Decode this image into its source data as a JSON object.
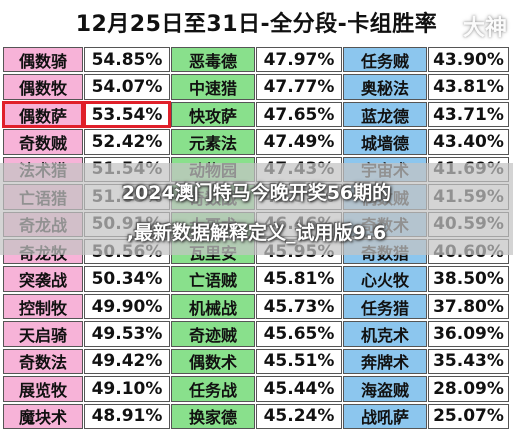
{
  "title": "12月25日至31日-全分段-卡组胜率",
  "logo": "大神",
  "overlay_text": {
    "line1": "2024澳门特马今晚开奖56期的",
    "line2": ",最新数据解释定义_试用版9.6"
  },
  "colors": {
    "pink": "#f7b3d8",
    "green": "#89e08c",
    "blue": "#8cc6ee",
    "red_outline": "#e0202a"
  },
  "rows": [
    [
      "偶数骑",
      "54.85%",
      "恶毒德",
      "47.97%",
      "任务贼",
      "43.90%"
    ],
    [
      "偶数牧",
      "54.07%",
      "中速猎",
      "47.77%",
      "奥秘法",
      "43.81%"
    ],
    [
      "偶数萨",
      "53.54%",
      "快攻萨",
      "47.65%",
      "蓝龙德",
      "43.71%"
    ],
    [
      "奇数贼",
      "52.42%",
      "元素法",
      "47.49%",
      "城墙德",
      "43.40%"
    ],
    [
      "法术猎",
      "51.54%",
      "动物园",
      "47.43%",
      "宇宙术",
      "41.69%"
    ],
    [
      "亡语猎",
      "51.08%",
      "奇数战",
      "46.59%",
      "偶数贼",
      "41.59%"
    ],
    [
      "奇龙战",
      "50.91%",
      "大哥术",
      "46.46%",
      "奇数术",
      "40.59%"
    ],
    [
      "奇龙牧",
      "50.56%",
      "瓦里安",
      "45.95%",
      "奇数猎",
      "40.60%"
    ],
    [
      "突袭战",
      "50.34%",
      "亡语贼",
      "45.81%",
      "心火牧",
      "38.50%"
    ],
    [
      "控制牧",
      "49.90%",
      "机械战",
      "45.73%",
      "任务猎",
      "37.80%"
    ],
    [
      "天启骑",
      "49.53%",
      "奇迹贼",
      "45.65%",
      "机克术",
      "36.09%"
    ],
    [
      "奇数法",
      "49.42%",
      "偶数术",
      "45.51%",
      "奔牌术",
      "35.43%"
    ],
    [
      "展览牧",
      "49.10%",
      "任务战",
      "45.44%",
      "海盗贼",
      "28.09%"
    ],
    [
      "魔块术",
      "48.91%",
      "换家德",
      "45.24%",
      "战吼萨",
      "25.07%"
    ]
  ]
}
